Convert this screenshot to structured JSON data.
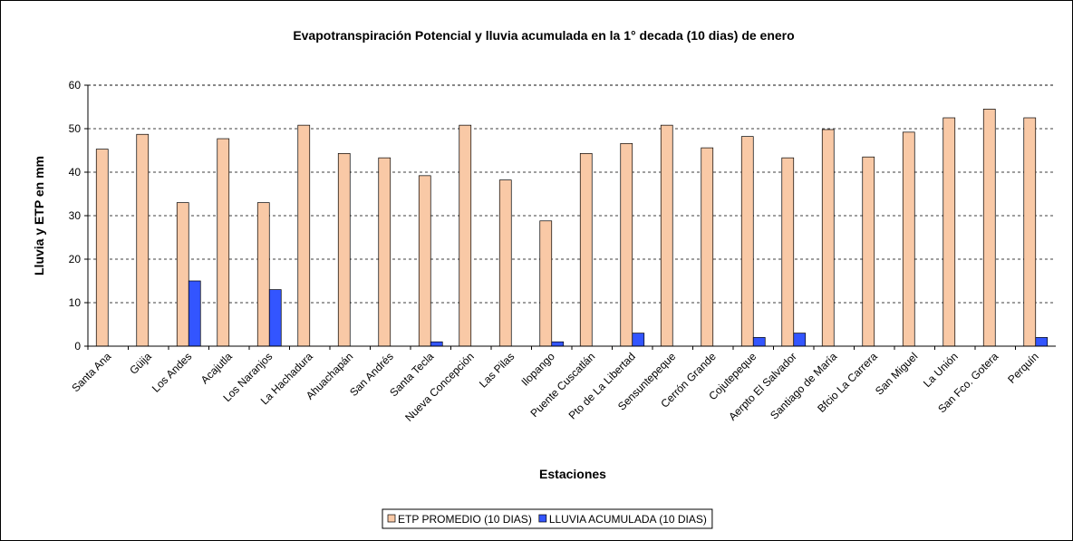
{
  "chart_data": {
    "type": "bar",
    "title": "Evapotranspiración Potencial y lluvia acumulada en la 1° decada (10 dias) de enero",
    "x_label": "Estaciones",
    "y_label": "Lluvia y ETP en mm",
    "categories": [
      "Santa Ana",
      "Güija",
      "Los Andes",
      "Acajutla",
      "Los Naranjos",
      "La Hachadura",
      "Ahuachapán",
      "San Andrés",
      "Santa Tecla",
      "Nueva Concepción",
      "Las Pilas",
      "Ilopango",
      "Puente Cuscatlán",
      "Pto de La Libertad",
      "Sensuntepeque",
      "Cerrón Grande",
      "Cojutepeque",
      "Aerpto El Salvador",
      "Santiago de María",
      "Bfcio La Carrera",
      "San Miguel",
      "La Unión",
      "San Fco. Gotera",
      "Perquín"
    ],
    "series": [
      {
        "name": "ETP PROMEDIO (10 DIAS)",
        "color": "#f9c9a6",
        "values": [
          45.3,
          48.7,
          33,
          47.7,
          33,
          50.8,
          44.3,
          43.3,
          39.2,
          50.8,
          38.2,
          28.8,
          44.3,
          46.6,
          50.8,
          45.6,
          48.2,
          43.3,
          49.8,
          43.5,
          49.2,
          52.5,
          54.5,
          52.5
        ]
      },
      {
        "name": "LLUVIA ACUMULADA (10 DIAS)",
        "color": "#3355ff",
        "values": [
          0,
          0,
          15,
          0,
          13,
          0,
          0,
          0,
          1,
          0,
          0,
          1,
          0,
          3,
          0,
          0,
          2,
          3,
          0,
          0,
          0,
          0,
          0,
          2
        ]
      }
    ],
    "ylim": [
      0,
      60
    ],
    "yticks": [
      0,
      10,
      20,
      30,
      40,
      50,
      60
    ],
    "grid": true,
    "legend": "bottom"
  }
}
